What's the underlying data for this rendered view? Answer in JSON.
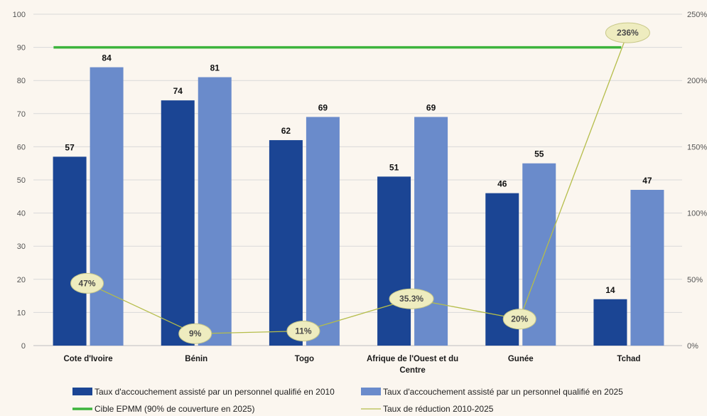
{
  "chart_data": {
    "type": "bar",
    "categories": [
      [
        "Cote d'Ivoire"
      ],
      [
        "Bénin"
      ],
      [
        "Togo"
      ],
      [
        "Afrique de l'Ouest et du",
        "Centre"
      ],
      [
        "Gunée"
      ],
      [
        "Tchad"
      ]
    ],
    "series": [
      {
        "name": "Taux d'accouchement assisté par un personnel qualifié en 2010",
        "values": [
          57,
          74,
          62,
          51,
          46,
          14
        ],
        "color": "#1b4594"
      },
      {
        "name": "Taux d'accouchement assisté par un personnel qualifié en 2025",
        "values": [
          84,
          81,
          69,
          69,
          55,
          47
        ],
        "color": "#6a8bcb"
      }
    ],
    "target_line": {
      "name": "Cible EPMM (90% de couverture en 2025)",
      "value": 90,
      "color": "#3cb43c"
    },
    "reduction_line": {
      "name": "Taux de réduction 2010-2025",
      "values": [
        47,
        9,
        11,
        35.3,
        20,
        236
      ],
      "labels": [
        "47%",
        "9%",
        "11%",
        "35.3%",
        "20%",
        "236%"
      ],
      "color": "#b5bd4a"
    },
    "y_left": {
      "min": 0,
      "max": 100,
      "ticks": [
        0,
        10,
        20,
        30,
        40,
        50,
        60,
        70,
        80,
        90,
        100
      ]
    },
    "y_right": {
      "min": 0,
      "max": 250,
      "ticks": [
        "0%",
        "50%",
        "100%",
        "150%",
        "200%",
        "250%"
      ]
    },
    "grid": true,
    "legend_position": "bottom"
  }
}
